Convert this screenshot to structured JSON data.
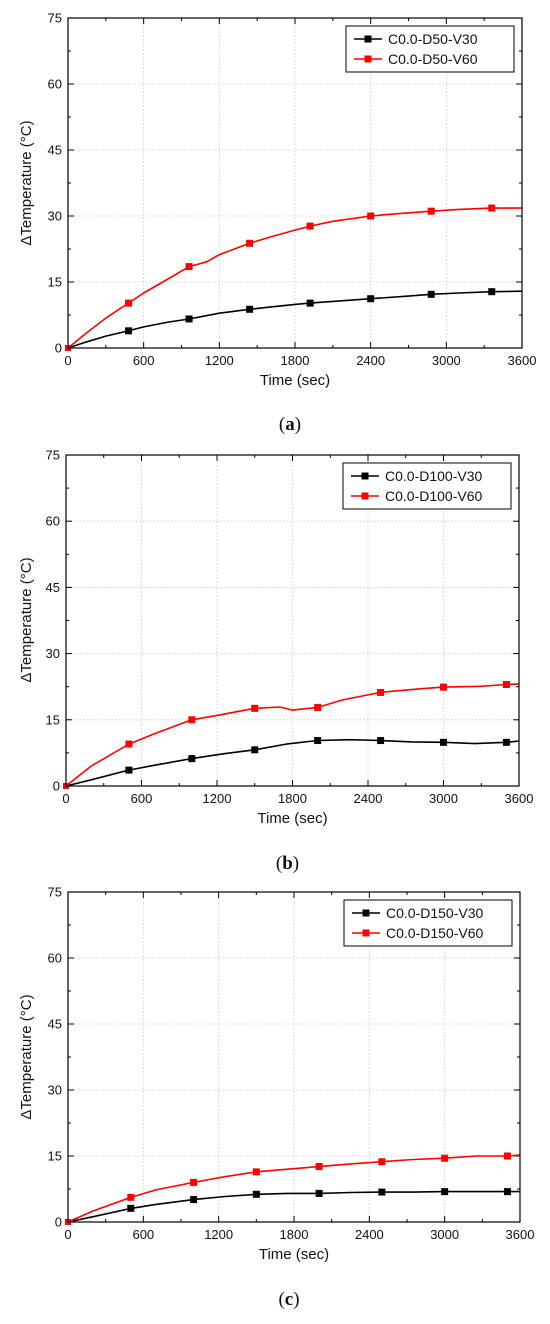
{
  "chart_data": [
    {
      "type": "line",
      "panel_label": "a",
      "xlabel": "Time (sec)",
      "ylabel": "ΔTemperature (°C)",
      "xlim": [
        0,
        3600
      ],
      "ylim": [
        0,
        75
      ],
      "xticks": [
        0,
        600,
        1200,
        1800,
        2400,
        3000,
        3600
      ],
      "yticks": [
        0,
        15,
        30,
        45,
        60,
        75
      ],
      "grid": true,
      "legend_position": "top-right",
      "series": [
        {
          "name": "C0.0-D50-V30",
          "color": "#000000",
          "x": [
            0,
            150,
            300,
            480,
            600,
            800,
            960,
            1200,
            1440,
            1600,
            1800,
            1920,
            2100,
            2400,
            2700,
            2880,
            3100,
            3360,
            3600
          ],
          "y": [
            0,
            1.4,
            2.7,
            3.9,
            4.8,
            5.9,
            6.6,
            7.9,
            8.8,
            9.3,
            9.9,
            10.2,
            10.6,
            11.2,
            11.8,
            12.2,
            12.5,
            12.8,
            12.9
          ]
        },
        {
          "name": "C0.0-D50-V60",
          "color": "#ff0000",
          "x": [
            0,
            150,
            300,
            480,
            600,
            800,
            960,
            1100,
            1200,
            1440,
            1600,
            1800,
            1920,
            2100,
            2400,
            2600,
            2880,
            3100,
            3360,
            3600
          ],
          "y": [
            0,
            3.5,
            6.8,
            10.2,
            12.5,
            15.8,
            18.5,
            19.6,
            21.2,
            23.8,
            25.2,
            26.8,
            27.7,
            28.8,
            30.0,
            30.5,
            31.1,
            31.5,
            31.8,
            31.8
          ]
        }
      ]
    },
    {
      "type": "line",
      "panel_label": "b",
      "xlabel": "Time (sec)",
      "ylabel": "ΔTemperature (°C)",
      "xlim": [
        0,
        3600
      ],
      "ylim": [
        0,
        75
      ],
      "xticks": [
        0,
        600,
        1200,
        1800,
        2400,
        3000,
        3600
      ],
      "yticks": [
        0,
        15,
        30,
        45,
        60,
        75
      ],
      "grid": true,
      "legend_position": "top-right",
      "series": [
        {
          "name": "C0.0-D100-V30",
          "color": "#000000",
          "x": [
            0,
            200,
            500,
            700,
            1000,
            1250,
            1500,
            1750,
            2000,
            2250,
            2500,
            2750,
            3000,
            3250,
            3500,
            3600
          ],
          "y": [
            0,
            1.4,
            3.6,
            4.7,
            6.2,
            7.3,
            8.2,
            9.5,
            10.3,
            10.5,
            10.3,
            10.0,
            9.9,
            9.6,
            9.9,
            10.2
          ]
        },
        {
          "name": "C0.0-D100-V60",
          "color": "#ff0000",
          "x": [
            0,
            200,
            500,
            700,
            1000,
            1200,
            1500,
            1700,
            1800,
            2000,
            2200,
            2500,
            2800,
            3000,
            3300,
            3500,
            3600
          ],
          "y": [
            0,
            4.5,
            9.5,
            11.8,
            15.0,
            16.0,
            17.6,
            17.9,
            17.2,
            17.8,
            19.5,
            21.2,
            22.0,
            22.4,
            22.6,
            23.0,
            23.1
          ]
        }
      ]
    },
    {
      "type": "line",
      "panel_label": "c",
      "xlabel": "Time (sec)",
      "ylabel": "ΔTemperature (°C)",
      "xlim": [
        0,
        3600
      ],
      "ylim": [
        0,
        75
      ],
      "xticks": [
        0,
        600,
        1200,
        1800,
        2400,
        3000,
        3600
      ],
      "yticks": [
        0,
        15,
        30,
        45,
        60,
        75
      ],
      "grid": true,
      "legend_position": "top-right",
      "series": [
        {
          "name": "C0.0-D150-V30",
          "color": "#000000",
          "x": [
            0,
            200,
            500,
            700,
            1000,
            1250,
            1500,
            1750,
            2000,
            2250,
            2500,
            2750,
            3000,
            3250,
            3500,
            3600
          ],
          "y": [
            0,
            1.2,
            3.1,
            4.0,
            5.1,
            5.8,
            6.3,
            6.5,
            6.5,
            6.7,
            6.8,
            6.8,
            6.9,
            6.9,
            6.9,
            6.9
          ]
        },
        {
          "name": "C0.0-D150-V60",
          "color": "#ff0000",
          "x": [
            0,
            200,
            500,
            700,
            1000,
            1250,
            1500,
            1750,
            2000,
            2250,
            2500,
            2750,
            3000,
            3250,
            3500,
            3600
          ],
          "y": [
            0,
            2.5,
            5.6,
            7.3,
            9.0,
            10.3,
            11.4,
            12.0,
            12.6,
            13.2,
            13.7,
            14.2,
            14.5,
            15.0,
            15.0,
            15.2
          ]
        }
      ]
    }
  ]
}
